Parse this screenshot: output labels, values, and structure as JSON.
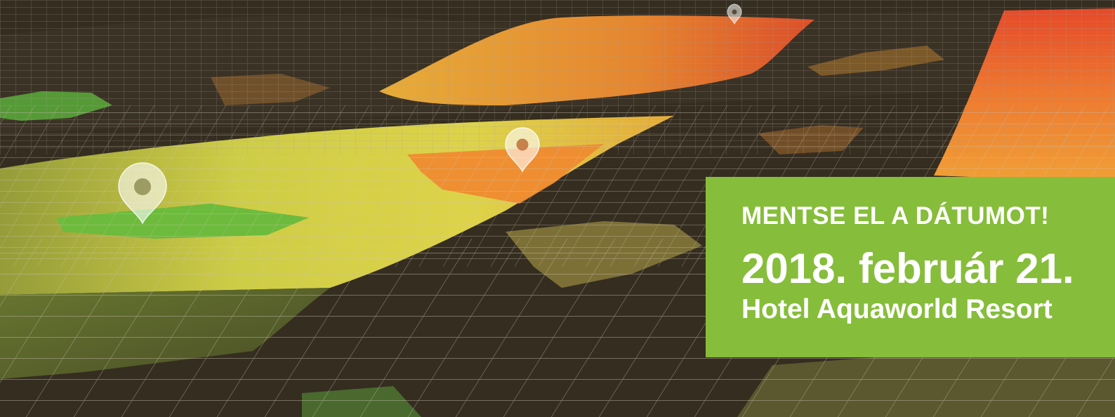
{
  "banner": {
    "headline": "MENTSE EL A DÁTUMOT!",
    "date": "2018. február 21.",
    "venue": "Hotel Aquaworld Resort"
  },
  "colors": {
    "background": "#352d20",
    "grid_line": "#b8ada0",
    "accent_green": "#86bd3a",
    "heat_green": "#6db83c",
    "heat_yellow": "#e3dc4a",
    "heat_orange": "#ef9a33",
    "heat_red": "#e54a2a"
  },
  "icons": [
    "map-pin-icon",
    "map-pin-icon",
    "map-pin-icon"
  ]
}
